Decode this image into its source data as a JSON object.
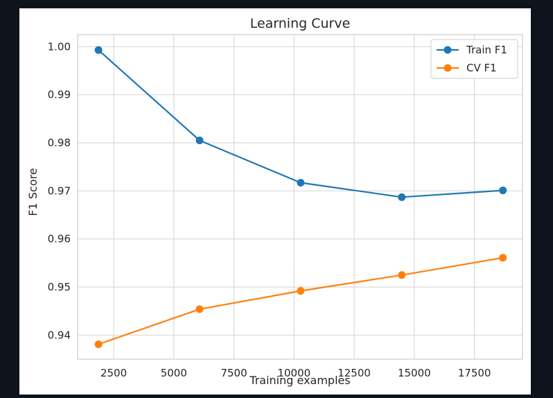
{
  "chart_data": {
    "type": "line",
    "title": "Learning Curve",
    "xlabel": "Training examples",
    "ylabel": "F1 Score",
    "xlim": [
      1000,
      19500
    ],
    "ylim": [
      0.935,
      1.0025
    ],
    "xticks": [
      2500,
      5000,
      7500,
      10000,
      12500,
      15000,
      17500
    ],
    "xtick_labels": [
      "2500",
      "5000",
      "7500",
      "10000",
      "12500",
      "15000",
      "17500"
    ],
    "yticks": [
      0.94,
      0.95,
      0.96,
      0.97,
      0.98,
      0.99,
      1.0
    ],
    "ytick_labels": [
      "0.94",
      "0.95",
      "0.96",
      "0.97",
      "0.98",
      "0.99",
      "1.00"
    ],
    "grid": true,
    "legend_position": "top-right",
    "x": [
      1868,
      6072,
      10276,
      14480,
      18684
    ],
    "series": [
      {
        "name": "Train F1",
        "color": "#1f77b4",
        "values": [
          0.9993,
          0.9805,
          0.9717,
          0.9687,
          0.9701
        ]
      },
      {
        "name": "CV F1",
        "color": "#ff7f0e",
        "values": [
          0.9381,
          0.9454,
          0.9492,
          0.9525,
          0.9561
        ]
      }
    ]
  }
}
